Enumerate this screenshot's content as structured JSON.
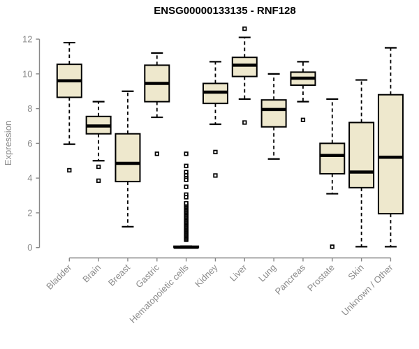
{
  "chart_data": {
    "type": "boxplot",
    "title": "ENSG00000133135 - RNF128",
    "ylabel": "Expression",
    "xlabel": "",
    "ylim": [
      0,
      12
    ],
    "yticks": [
      0,
      2,
      4,
      6,
      8,
      10,
      12
    ],
    "grid": false,
    "legend": null,
    "colors": {
      "box_fill": "#EEE8CD",
      "box_stroke": "#000000",
      "median": "#000000",
      "whisker": "#000000",
      "outlier_stroke": "#000000",
      "outlier_fill": "#ffffff",
      "axis_line": "#878787",
      "tick_label": "#8a8a8a",
      "title": "#000000",
      "background": "#ffffff"
    },
    "categories": [
      "Bladder",
      "Brain",
      "Breast",
      "Gastric",
      "Hematopoietic cells",
      "Kidney",
      "Liver",
      "Lung",
      "Pancreas",
      "Prostate",
      "Skin",
      "Unknown / Other"
    ],
    "series": [
      {
        "category": "Bladder",
        "whisker_low": 5.95,
        "q1": 8.65,
        "median": 9.6,
        "q3": 10.55,
        "whisker_high": 11.8,
        "outliers": [
          4.45
        ]
      },
      {
        "category": "Brain",
        "whisker_low": 5.0,
        "q1": 6.55,
        "median": 7.0,
        "q3": 7.55,
        "whisker_high": 8.4,
        "outliers": [
          4.65,
          3.85
        ]
      },
      {
        "category": "Breast",
        "whisker_low": 1.2,
        "q1": 3.8,
        "median": 4.85,
        "q3": 6.55,
        "whisker_high": 9.0,
        "outliers": []
      },
      {
        "category": "Gastric",
        "whisker_low": 7.5,
        "q1": 8.4,
        "median": 9.45,
        "q3": 10.5,
        "whisker_high": 11.2,
        "outliers": [
          5.4
        ]
      },
      {
        "category": "Hematopoietic cells",
        "whisker_low": 0.0,
        "q1": 0.0,
        "median": 0.02,
        "q3": 0.08,
        "whisker_high": 0.08,
        "outliers": [
          5.4,
          4.7,
          4.35,
          4.15,
          4.0,
          3.9,
          3.5,
          3.05,
          2.9
        ],
        "outlier_dense_range": {
          "from": 0.45,
          "to": 2.55,
          "step": 0.07
        }
      },
      {
        "category": "Kidney",
        "whisker_low": 7.1,
        "q1": 8.3,
        "median": 8.95,
        "q3": 9.45,
        "whisker_high": 10.7,
        "outliers": [
          5.5,
          4.15
        ]
      },
      {
        "category": "Liver",
        "whisker_low": 8.55,
        "q1": 9.85,
        "median": 10.5,
        "q3": 10.95,
        "whisker_high": 12.1,
        "outliers": [
          12.6,
          7.2
        ]
      },
      {
        "category": "Lung",
        "whisker_low": 5.1,
        "q1": 6.95,
        "median": 7.95,
        "q3": 8.5,
        "whisker_high": 10.0,
        "outliers": []
      },
      {
        "category": "Pancreas",
        "whisker_low": 8.4,
        "q1": 9.35,
        "median": 9.75,
        "q3": 10.1,
        "whisker_high": 10.7,
        "outliers": [
          7.35
        ]
      },
      {
        "category": "Prostate",
        "whisker_low": 3.1,
        "q1": 4.25,
        "median": 5.3,
        "q3": 6.0,
        "whisker_high": 8.55,
        "outliers": [
          0.05
        ]
      },
      {
        "category": "Skin",
        "whisker_low": 0.05,
        "q1": 3.45,
        "median": 4.35,
        "q3": 7.2,
        "whisker_high": 9.65,
        "outliers": []
      },
      {
        "category": "Unknown / Other",
        "whisker_low": 0.05,
        "q1": 1.95,
        "median": 5.2,
        "q3": 8.8,
        "whisker_high": 11.5,
        "outliers": []
      }
    ]
  }
}
